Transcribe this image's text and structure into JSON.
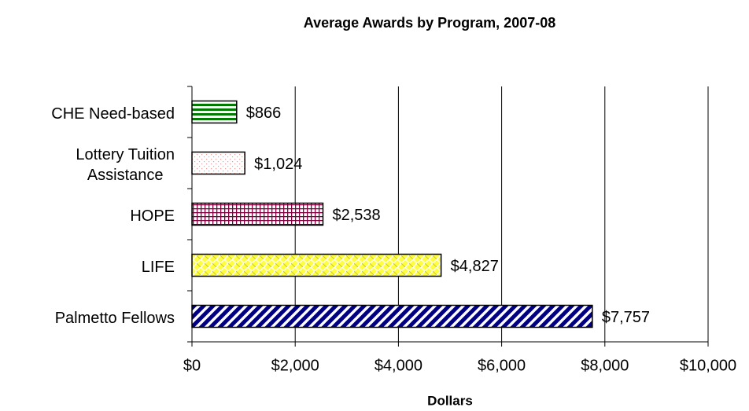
{
  "chart_data": {
    "type": "bar",
    "orientation": "horizontal",
    "title": "Average Awards by Program, 2007-08",
    "x_label": "Dollars",
    "categories": [
      "CHE Need-based",
      "Lottery Tuition\nAssistance",
      "HOPE",
      "LIFE",
      "Palmetto Fellows"
    ],
    "values": [
      866,
      1024,
      2538,
      4827,
      7757
    ],
    "value_labels": [
      "$866",
      "$1,024",
      "$2,538",
      "$4,827",
      "$7,757"
    ],
    "colors": [
      "#007a00",
      "#e8a0a0",
      "#800040",
      "#ffff40",
      "#000080"
    ],
    "xlim": [
      0,
      10000
    ],
    "xticks": [
      {
        "value": 0,
        "label": "$0"
      },
      {
        "value": 2000,
        "label": "$2,000"
      },
      {
        "value": 4000,
        "label": "$4,000"
      },
      {
        "value": 6000,
        "label": "$6,000"
      },
      {
        "value": 8000,
        "label": "$8,000"
      },
      {
        "value": 10000,
        "label": "$10,000"
      }
    ],
    "grid": true
  }
}
